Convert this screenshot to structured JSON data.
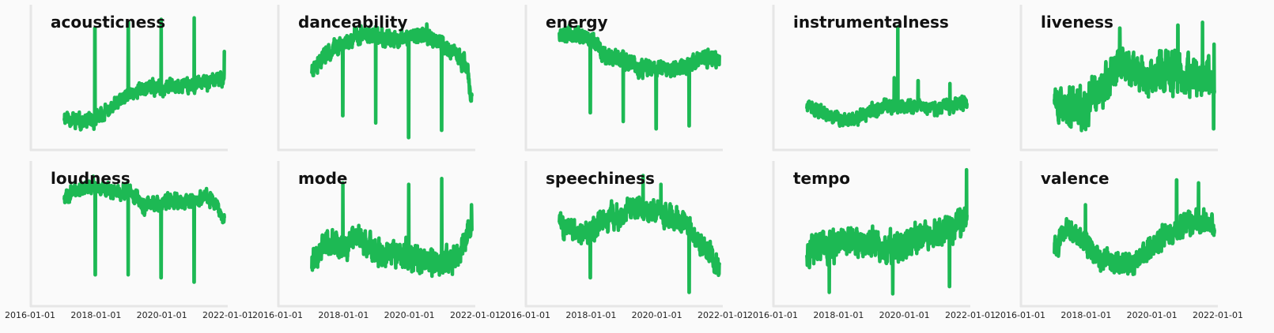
{
  "chart_data": {
    "type": "line",
    "layout": "grid 2x5, shared x axis",
    "line_color": "#1db954",
    "background": "#fafafa",
    "axis_color": "#e6e6e6",
    "grid": false,
    "xlim": [
      "2016-01-01",
      "2022-01-01"
    ],
    "x_tick_labels": [
      "2016-01-01",
      "2018-01-01",
      "2020-01-01",
      "2022-01-01"
    ],
    "ylim": [
      0,
      1
    ],
    "y_ticks_shown": false,
    "x_range_of_series": [
      "2017-01-15",
      "2021-11-25"
    ],
    "panels": [
      {
        "title": "acousticness",
        "seed": 11,
        "noise": 0.022,
        "trend": [
          [
            "2017-01-15",
            0.24
          ],
          [
            "2017-06-01",
            0.2
          ],
          [
            "2017-12-01",
            0.2
          ],
          [
            "2018-06-01",
            0.28
          ],
          [
            "2019-01-01",
            0.38
          ],
          [
            "2019-06-01",
            0.43
          ],
          [
            "2020-01-01",
            0.43
          ],
          [
            "2020-06-01",
            0.45
          ],
          [
            "2021-01-01",
            0.45
          ],
          [
            "2021-06-01",
            0.47
          ],
          [
            "2021-11-20",
            0.5
          ]
        ],
        "spikes": [
          [
            "2017-12-20",
            0.84
          ],
          [
            "2018-12-25",
            0.88
          ],
          [
            "2019-12-25",
            0.9
          ],
          [
            "2020-12-25",
            0.91
          ],
          [
            "2021-11-25",
            0.68
          ]
        ],
        "dips": []
      },
      {
        "title": "danceability",
        "seed": 23,
        "noise": 0.025,
        "trend": [
          [
            "2017-01-15",
            0.56
          ],
          [
            "2017-06-01",
            0.66
          ],
          [
            "2018-01-01",
            0.74
          ],
          [
            "2018-06-01",
            0.79
          ],
          [
            "2019-01-01",
            0.78
          ],
          [
            "2019-06-01",
            0.75
          ],
          [
            "2020-01-01",
            0.78
          ],
          [
            "2020-06-01",
            0.8
          ],
          [
            "2021-01-01",
            0.74
          ],
          [
            "2021-06-01",
            0.65
          ],
          [
            "2021-10-01",
            0.58
          ],
          [
            "2021-11-25",
            0.33
          ]
        ],
        "spikes": [],
        "dips": [
          [
            "2017-12-24",
            0.24
          ],
          [
            "2018-12-24",
            0.19
          ],
          [
            "2019-12-24",
            0.09
          ],
          [
            "2020-12-24",
            0.14
          ]
        ]
      },
      {
        "title": "energy",
        "seed": 37,
        "noise": 0.025,
        "trend": [
          [
            "2017-01-15",
            0.82
          ],
          [
            "2017-06-01",
            0.8
          ],
          [
            "2018-01-01",
            0.76
          ],
          [
            "2018-06-01",
            0.66
          ],
          [
            "2019-01-01",
            0.62
          ],
          [
            "2019-06-01",
            0.56
          ],
          [
            "2020-01-01",
            0.57
          ],
          [
            "2020-06-01",
            0.55
          ],
          [
            "2021-01-01",
            0.6
          ],
          [
            "2021-06-01",
            0.63
          ],
          [
            "2021-11-25",
            0.62
          ]
        ],
        "spikes": [],
        "dips": [
          [
            "2017-12-24",
            0.26
          ],
          [
            "2018-12-24",
            0.2
          ],
          [
            "2019-12-24",
            0.15
          ],
          [
            "2020-12-24",
            0.17
          ]
        ]
      },
      {
        "title": "instrumentalness",
        "seed": 41,
        "noise": 0.02,
        "trend": [
          [
            "2017-01-15",
            0.3
          ],
          [
            "2017-06-01",
            0.28
          ],
          [
            "2018-01-01",
            0.22
          ],
          [
            "2018-06-01",
            0.21
          ],
          [
            "2019-01-01",
            0.26
          ],
          [
            "2019-06-01",
            0.31
          ],
          [
            "2020-01-01",
            0.3
          ],
          [
            "2020-06-01",
            0.31
          ],
          [
            "2021-01-01",
            0.29
          ],
          [
            "2021-06-01",
            0.3
          ],
          [
            "2021-11-25",
            0.33
          ]
        ],
        "spikes": [
          [
            "2019-10-20",
            0.85
          ],
          [
            "2019-09-10",
            0.5
          ],
          [
            "2020-06-01",
            0.48
          ],
          [
            "2021-05-20",
            0.46
          ]
        ],
        "dips": []
      },
      {
        "title": "liveness",
        "seed": 53,
        "noise": 0.06,
        "trend": [
          [
            "2017-01-15",
            0.42
          ],
          [
            "2017-06-01",
            0.26
          ],
          [
            "2018-01-01",
            0.29
          ],
          [
            "2018-06-01",
            0.43
          ],
          [
            "2019-01-01",
            0.6
          ],
          [
            "2019-06-01",
            0.55
          ],
          [
            "2020-01-01",
            0.52
          ],
          [
            "2020-06-01",
            0.56
          ],
          [
            "2021-01-01",
            0.5
          ],
          [
            "2021-06-01",
            0.5
          ],
          [
            "2021-11-25",
            0.48
          ]
        ],
        "spikes": [
          [
            "2019-01-10",
            0.84
          ],
          [
            "2020-10-15",
            0.86
          ],
          [
            "2021-07-15",
            0.88
          ],
          [
            "2021-11-20",
            0.73
          ]
        ],
        "dips": [
          [
            "2021-11-15",
            0.15
          ]
        ]
      },
      {
        "title": "loudness",
        "seed": 67,
        "noise": 0.022,
        "trend": [
          [
            "2017-01-15",
            0.76
          ],
          [
            "2017-06-01",
            0.8
          ],
          [
            "2018-01-01",
            0.83
          ],
          [
            "2018-06-01",
            0.8
          ],
          [
            "2019-01-01",
            0.78
          ],
          [
            "2019-06-01",
            0.7
          ],
          [
            "2020-01-01",
            0.72
          ],
          [
            "2020-06-01",
            0.73
          ],
          [
            "2021-01-01",
            0.72
          ],
          [
            "2021-06-01",
            0.76
          ],
          [
            "2021-11-20",
            0.62
          ]
        ],
        "spikes": [],
        "dips": [
          [
            "2017-12-24",
            0.22
          ],
          [
            "2018-12-24",
            0.22
          ],
          [
            "2019-12-24",
            0.2
          ],
          [
            "2020-12-24",
            0.17
          ]
        ]
      },
      {
        "title": "mode",
        "seed": 79,
        "noise": 0.04,
        "trend": [
          [
            "2017-01-15",
            0.3
          ],
          [
            "2017-06-01",
            0.45
          ],
          [
            "2018-01-01",
            0.4
          ],
          [
            "2018-06-01",
            0.5
          ],
          [
            "2019-01-01",
            0.35
          ],
          [
            "2019-06-01",
            0.38
          ],
          [
            "2020-01-01",
            0.34
          ],
          [
            "2020-06-01",
            0.3
          ],
          [
            "2021-01-01",
            0.3
          ],
          [
            "2021-06-01",
            0.33
          ],
          [
            "2021-11-25",
            0.55
          ]
        ],
        "spikes": [
          [
            "2017-12-25",
            0.85
          ],
          [
            "2019-12-25",
            0.84
          ],
          [
            "2020-12-25",
            0.88
          ],
          [
            "2021-11-20",
            0.7
          ]
        ],
        "dips": []
      },
      {
        "title": "speechiness",
        "seed": 83,
        "noise": 0.035,
        "trend": [
          [
            "2017-01-15",
            0.6
          ],
          [
            "2017-06-01",
            0.52
          ],
          [
            "2018-01-01",
            0.52
          ],
          [
            "2018-06-01",
            0.6
          ],
          [
            "2019-01-01",
            0.63
          ],
          [
            "2019-06-01",
            0.68
          ],
          [
            "2020-01-01",
            0.64
          ],
          [
            "2020-06-01",
            0.64
          ],
          [
            "2021-01-01",
            0.55
          ],
          [
            "2021-06-01",
            0.42
          ],
          [
            "2021-11-25",
            0.26
          ]
        ],
        "spikes": [
          [
            "2019-08-01",
            0.9
          ],
          [
            "2020-02-15",
            0.84
          ]
        ],
        "dips": [
          [
            "2017-12-24",
            0.2
          ],
          [
            "2020-12-24",
            0.1
          ]
        ]
      },
      {
        "title": "tempo",
        "seed": 97,
        "noise": 0.045,
        "trend": [
          [
            "2017-01-15",
            0.4
          ],
          [
            "2017-06-01",
            0.4
          ],
          [
            "2018-01-01",
            0.4
          ],
          [
            "2018-06-01",
            0.45
          ],
          [
            "2019-01-01",
            0.43
          ],
          [
            "2019-06-01",
            0.38
          ],
          [
            "2020-01-01",
            0.42
          ],
          [
            "2020-06-01",
            0.47
          ],
          [
            "2021-01-01",
            0.5
          ],
          [
            "2021-06-01",
            0.52
          ],
          [
            "2021-11-25",
            0.62
          ]
        ],
        "spikes": [
          [
            "2021-11-20",
            0.94
          ]
        ],
        "dips": [
          [
            "2017-09-20",
            0.1
          ],
          [
            "2019-08-25",
            0.09
          ],
          [
            "2021-05-15",
            0.14
          ]
        ]
      },
      {
        "title": "valence",
        "seed": 101,
        "noise": 0.035,
        "trend": [
          [
            "2017-01-15",
            0.4
          ],
          [
            "2017-06-01",
            0.54
          ],
          [
            "2018-01-01",
            0.45
          ],
          [
            "2018-06-01",
            0.34
          ],
          [
            "2019-01-01",
            0.3
          ],
          [
            "2019-06-01",
            0.29
          ],
          [
            "2020-01-01",
            0.42
          ],
          [
            "2020-06-01",
            0.5
          ],
          [
            "2021-01-01",
            0.56
          ],
          [
            "2021-06-01",
            0.6
          ],
          [
            "2021-11-25",
            0.55
          ]
        ],
        "spikes": [
          [
            "2017-12-25",
            0.7
          ],
          [
            "2020-10-01",
            0.87
          ],
          [
            "2021-06-01",
            0.85
          ]
        ],
        "dips": []
      }
    ]
  }
}
